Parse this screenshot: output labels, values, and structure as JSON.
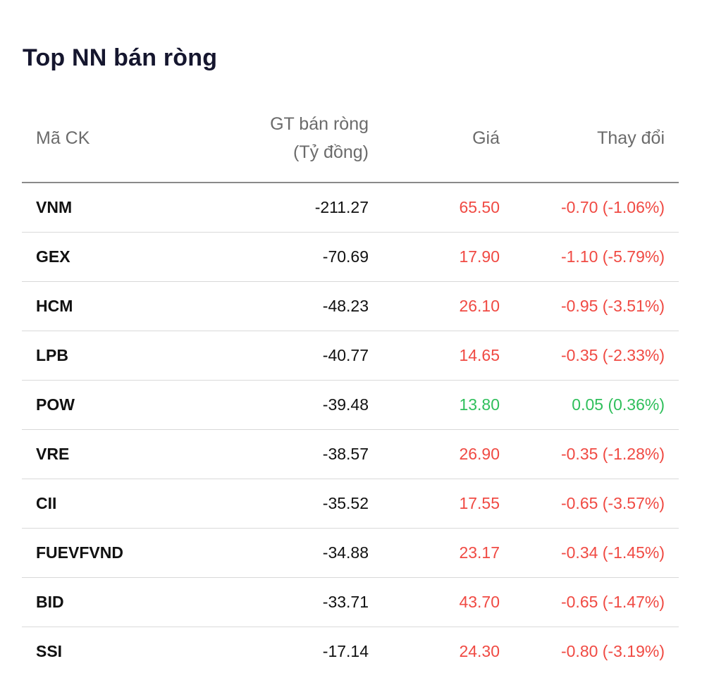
{
  "title": "Top NN bán ròng",
  "headers": {
    "code": "Mã CK",
    "value_line1": "GT bán ròng",
    "value_line2": "(Tỷ đồng)",
    "price": "Giá",
    "change": "Thay đổi"
  },
  "colors": {
    "down": "#f04a43",
    "up": "#2fbf5b"
  },
  "rows": [
    {
      "code": "VNM",
      "value": "-211.27",
      "price": "65.50",
      "change": "-0.70 (-1.06%)",
      "direction": "down"
    },
    {
      "code": "GEX",
      "value": "-70.69",
      "price": "17.90",
      "change": "-1.10 (-5.79%)",
      "direction": "down"
    },
    {
      "code": "HCM",
      "value": "-48.23",
      "price": "26.10",
      "change": "-0.95 (-3.51%)",
      "direction": "down"
    },
    {
      "code": "LPB",
      "value": "-40.77",
      "price": "14.65",
      "change": "-0.35 (-2.33%)",
      "direction": "down"
    },
    {
      "code": "POW",
      "value": "-39.48",
      "price": "13.80",
      "change": "0.05 (0.36%)",
      "direction": "up"
    },
    {
      "code": "VRE",
      "value": "-38.57",
      "price": "26.90",
      "change": "-0.35 (-1.28%)",
      "direction": "down"
    },
    {
      "code": "CII",
      "value": "-35.52",
      "price": "17.55",
      "change": "-0.65 (-3.57%)",
      "direction": "down"
    },
    {
      "code": "FUEVFVND",
      "value": "-34.88",
      "price": "23.17",
      "change": "-0.34 (-1.45%)",
      "direction": "down"
    },
    {
      "code": "BID",
      "value": "-33.71",
      "price": "43.70",
      "change": "-0.65 (-1.47%)",
      "direction": "down"
    },
    {
      "code": "SSI",
      "value": "-17.14",
      "price": "24.30",
      "change": "-0.80 (-3.19%)",
      "direction": "down"
    }
  ]
}
